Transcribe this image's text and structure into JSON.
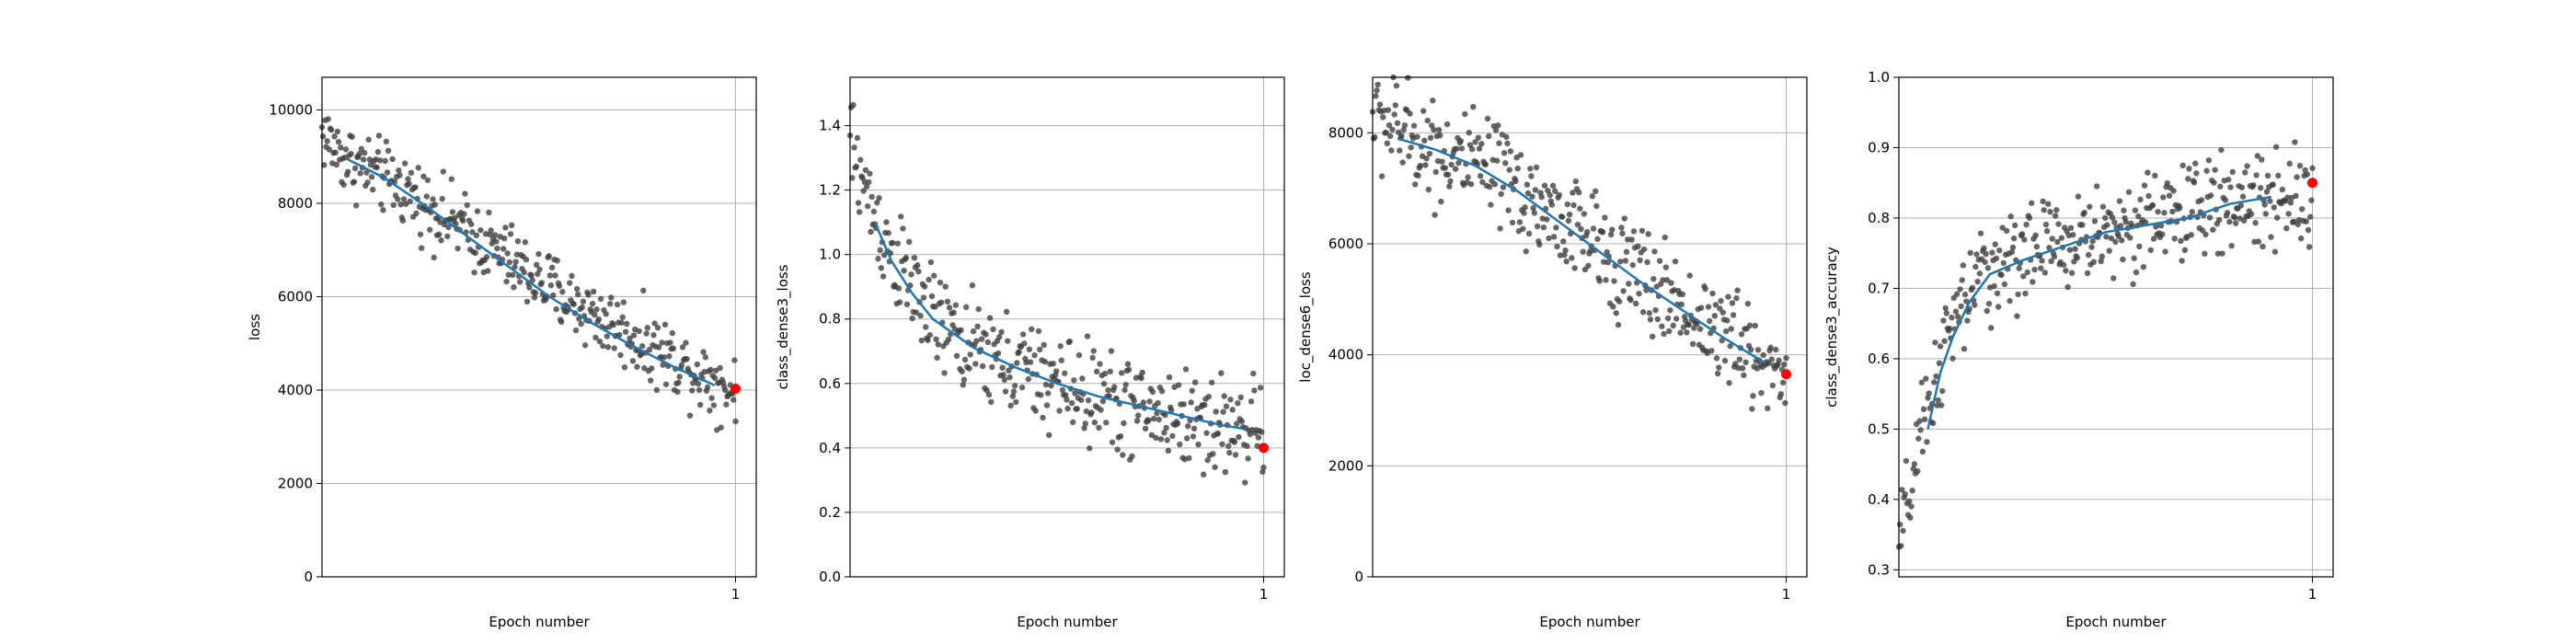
{
  "figure": {
    "background": "#ffffff",
    "point_color": "#404040",
    "smooth_color": "#1f77b4",
    "final_color": "#ff0000",
    "grid_color": "#b0b0b0"
  },
  "chart_data": [
    {
      "type": "scatter",
      "xlabel": "Epoch number",
      "ylabel": "loss",
      "xlim": [
        0,
        1.05
      ],
      "x_ticks": [
        1
      ],
      "x_tick_labels": [
        "1"
      ],
      "ylim": [
        0,
        10700
      ],
      "y_ticks": [
        0,
        2000,
        4000,
        6000,
        8000,
        10000
      ],
      "y_tick_labels": [
        "0",
        "2000",
        "4000",
        "6000",
        "8000",
        "10000"
      ],
      "grid": "y",
      "points": {
        "count": 400,
        "x_range": [
          0,
          1
        ],
        "trend": [
          [
            0,
            9500
          ],
          [
            0.05,
            9000
          ],
          [
            0.2,
            8300
          ],
          [
            0.4,
            7100
          ],
          [
            0.6,
            5900
          ],
          [
            0.8,
            4900
          ],
          [
            1.0,
            3950
          ]
        ],
        "spread": 450
      },
      "smooth_line": [
        [
          0.06,
          8950
        ],
        [
          0.15,
          8550
        ],
        [
          0.25,
          7950
        ],
        [
          0.35,
          7300
        ],
        [
          0.45,
          6650
        ],
        [
          0.55,
          6000
        ],
        [
          0.65,
          5450
        ],
        [
          0.75,
          4950
        ],
        [
          0.85,
          4500
        ],
        [
          0.95,
          4100
        ]
      ],
      "final_point": [
        1.0,
        4030
      ]
    },
    {
      "type": "scatter",
      "xlabel": "Epoch number",
      "ylabel": "class_dense3_loss",
      "xlim": [
        0,
        1.05
      ],
      "x_ticks": [
        1
      ],
      "x_tick_labels": [
        "1"
      ],
      "ylim": [
        0,
        1.55
      ],
      "y_ticks": [
        0.0,
        0.2,
        0.4,
        0.6,
        0.8,
        1.0,
        1.2,
        1.4
      ],
      "y_tick_labels": [
        "0.0",
        "0.2",
        "0.4",
        "0.6",
        "0.8",
        "1.0",
        "1.2",
        "1.4"
      ],
      "grid": "y",
      "points": {
        "count": 400,
        "x_range": [
          0,
          1
        ],
        "trend": [
          [
            0,
            1.35
          ],
          [
            0.05,
            1.15
          ],
          [
            0.1,
            1.0
          ],
          [
            0.2,
            0.8
          ],
          [
            0.3,
            0.7
          ],
          [
            0.5,
            0.6
          ],
          [
            0.7,
            0.52
          ],
          [
            0.9,
            0.47
          ],
          [
            1.0,
            0.45
          ]
        ],
        "spread": 0.09
      },
      "smooth_line": [
        [
          0.06,
          1.1
        ],
        [
          0.1,
          0.98
        ],
        [
          0.15,
          0.88
        ],
        [
          0.2,
          0.8
        ],
        [
          0.3,
          0.71
        ],
        [
          0.4,
          0.65
        ],
        [
          0.5,
          0.6
        ],
        [
          0.6,
          0.56
        ],
        [
          0.7,
          0.53
        ],
        [
          0.8,
          0.5
        ],
        [
          0.9,
          0.47
        ],
        [
          0.95,
          0.46
        ]
      ],
      "final_point": [
        1.0,
        0.4
      ]
    },
    {
      "type": "scatter",
      "xlabel": "Epoch number",
      "ylabel": "loc_dense6_loss",
      "xlim": [
        0,
        1.05
      ],
      "x_ticks": [
        1
      ],
      "x_tick_labels": [
        "1"
      ],
      "ylim": [
        0,
        9000
      ],
      "y_ticks": [
        0,
        2000,
        4000,
        6000,
        8000
      ],
      "y_tick_labels": [
        "0",
        "2000",
        "4000",
        "6000",
        "8000"
      ],
      "grid": "y",
      "points": {
        "count": 400,
        "x_range": [
          0,
          1
        ],
        "trend": [
          [
            0,
            8300
          ],
          [
            0.1,
            7900
          ],
          [
            0.3,
            7200
          ],
          [
            0.5,
            6200
          ],
          [
            0.7,
            5100
          ],
          [
            0.9,
            4100
          ],
          [
            1.0,
            3600
          ]
        ],
        "spread": 550
      },
      "smooth_line": [
        [
          0.06,
          7900
        ],
        [
          0.15,
          7700
        ],
        [
          0.25,
          7400
        ],
        [
          0.35,
          6950
        ],
        [
          0.45,
          6400
        ],
        [
          0.55,
          5850
        ],
        [
          0.65,
          5300
        ],
        [
          0.75,
          4800
        ],
        [
          0.85,
          4300
        ],
        [
          0.95,
          3850
        ]
      ],
      "final_point": [
        1.0,
        3650
      ]
    },
    {
      "type": "scatter",
      "xlabel": "Epoch number",
      "ylabel": "class_dense3_accuracy",
      "xlim": [
        0,
        1.05
      ],
      "x_ticks": [
        1
      ],
      "x_tick_labels": [
        "1"
      ],
      "ylim": [
        0.29,
        1.0
      ],
      "y_ticks": [
        0.3,
        0.4,
        0.5,
        0.6,
        0.7,
        0.8,
        0.9,
        1.0
      ],
      "y_tick_labels": [
        "0.3",
        "0.4",
        "0.5",
        "0.6",
        "0.7",
        "0.8",
        "0.9",
        "1.0"
      ],
      "grid": "y",
      "points": {
        "count": 400,
        "x_range": [
          0,
          1
        ],
        "trend": [
          [
            0,
            0.33
          ],
          [
            0.03,
            0.42
          ],
          [
            0.06,
            0.5
          ],
          [
            0.1,
            0.6
          ],
          [
            0.15,
            0.67
          ],
          [
            0.2,
            0.72
          ],
          [
            0.3,
            0.75
          ],
          [
            0.5,
            0.78
          ],
          [
            0.7,
            0.81
          ],
          [
            1.0,
            0.84
          ]
        ],
        "spread": 0.04
      },
      "smooth_line": [
        [
          0.07,
          0.5
        ],
        [
          0.1,
          0.58
        ],
        [
          0.13,
          0.63
        ],
        [
          0.17,
          0.68
        ],
        [
          0.22,
          0.72
        ],
        [
          0.3,
          0.74
        ],
        [
          0.4,
          0.76
        ],
        [
          0.5,
          0.78
        ],
        [
          0.6,
          0.79
        ],
        [
          0.7,
          0.8
        ],
        [
          0.8,
          0.82
        ],
        [
          0.9,
          0.83
        ]
      ],
      "final_point": [
        1.0,
        0.85
      ]
    }
  ]
}
